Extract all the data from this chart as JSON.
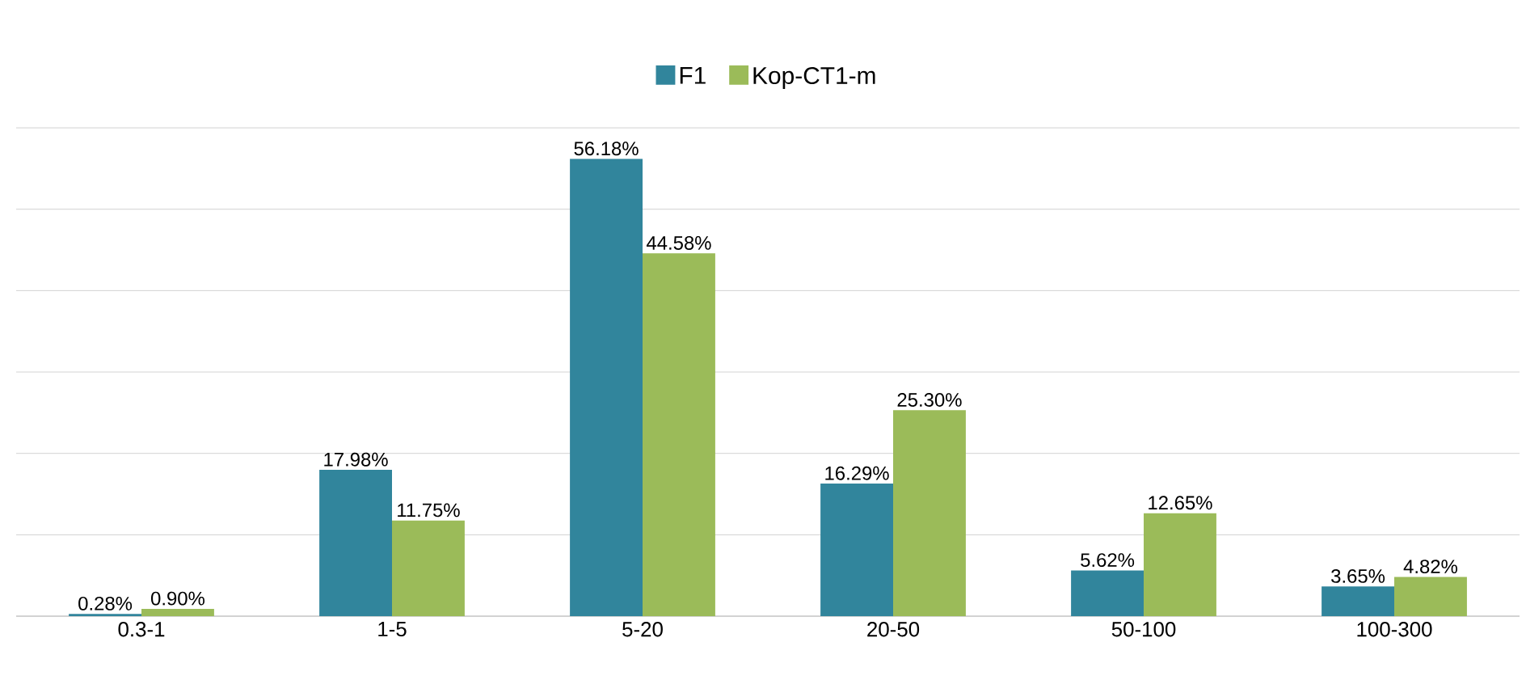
{
  "chart_data": {
    "type": "bar",
    "categories": [
      "0.3-1",
      "1-5",
      "5-20",
      "20-50",
      "50-100",
      "100-300"
    ],
    "series": [
      {
        "name": "F1",
        "color": "#31859c",
        "values": [
          0.28,
          17.98,
          56.18,
          16.29,
          5.62,
          3.65
        ],
        "value_labels": [
          "0.28%",
          "17.98%",
          "56.18%",
          "16.29%",
          "5.62%",
          "3.65%"
        ]
      },
      {
        "name": "Kop-CT1-m",
        "color": "#9bbb59",
        "values": [
          0.9,
          11.75,
          44.58,
          25.3,
          12.65,
          4.82
        ],
        "value_labels": [
          "0.90%",
          "11.75%",
          "44.58%",
          "25.30%",
          "12.65%",
          "4.82%"
        ]
      }
    ],
    "tick_labels": "x",
    "grid": "y",
    "legend": "top"
  }
}
